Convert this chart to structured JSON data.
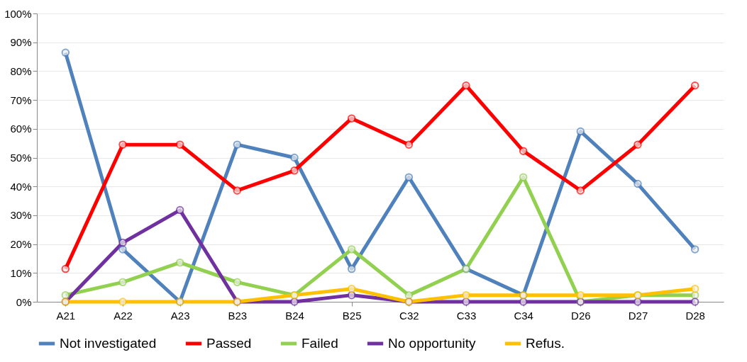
{
  "chart_data": {
    "type": "line",
    "categories": [
      "A21",
      "A22",
      "A23",
      "B23",
      "B24",
      "B25",
      "C32",
      "C33",
      "C34",
      "D26",
      "D27",
      "D28"
    ],
    "series": [
      {
        "name": "Not investigated",
        "color": "#4f81bd",
        "values": [
          86.4,
          18.2,
          0,
          54.5,
          50,
          11.4,
          43.2,
          11.4,
          2.3,
          59.1,
          40.9,
          18.2
        ]
      },
      {
        "name": "Passed",
        "color": "#ff0000",
        "values": [
          11.4,
          54.5,
          54.5,
          38.6,
          45.5,
          63.6,
          54.5,
          75,
          52.3,
          38.6,
          54.5,
          75
        ]
      },
      {
        "name": "Failed",
        "color": "#92d050",
        "values": [
          2.3,
          6.8,
          13.6,
          6.8,
          2.3,
          18.2,
          2.3,
          11.4,
          43.2,
          0,
          2.3,
          2.3
        ]
      },
      {
        "name": "No opportunity",
        "color": "#7030a0",
        "values": [
          0,
          20.5,
          31.8,
          0,
          0,
          2.3,
          0,
          0,
          0,
          0,
          0,
          0
        ]
      },
      {
        "name": "Refus.",
        "color": "#ffc000",
        "values": [
          0,
          0,
          0,
          0,
          2.3,
          4.5,
          0,
          2.3,
          2.3,
          2.3,
          2.3,
          4.5
        ]
      }
    ],
    "ylim": [
      0,
      100
    ],
    "yticks": [
      {
        "value": 0,
        "label": "0%"
      },
      {
        "value": 10,
        "label": "10%"
      },
      {
        "value": 20,
        "label": "20%"
      },
      {
        "value": 30,
        "label": "30%"
      },
      {
        "value": 40,
        "label": "40%"
      },
      {
        "value": 50,
        "label": "50%"
      },
      {
        "value": 60,
        "label": "60%"
      },
      {
        "value": 70,
        "label": "70%"
      },
      {
        "value": 80,
        "label": "80%"
      },
      {
        "value": 90,
        "label": "90%"
      },
      {
        "value": 100,
        "label": "100%"
      }
    ],
    "grid": "y",
    "legend": "bottom",
    "marker": "circle",
    "line_style": "solid"
  }
}
